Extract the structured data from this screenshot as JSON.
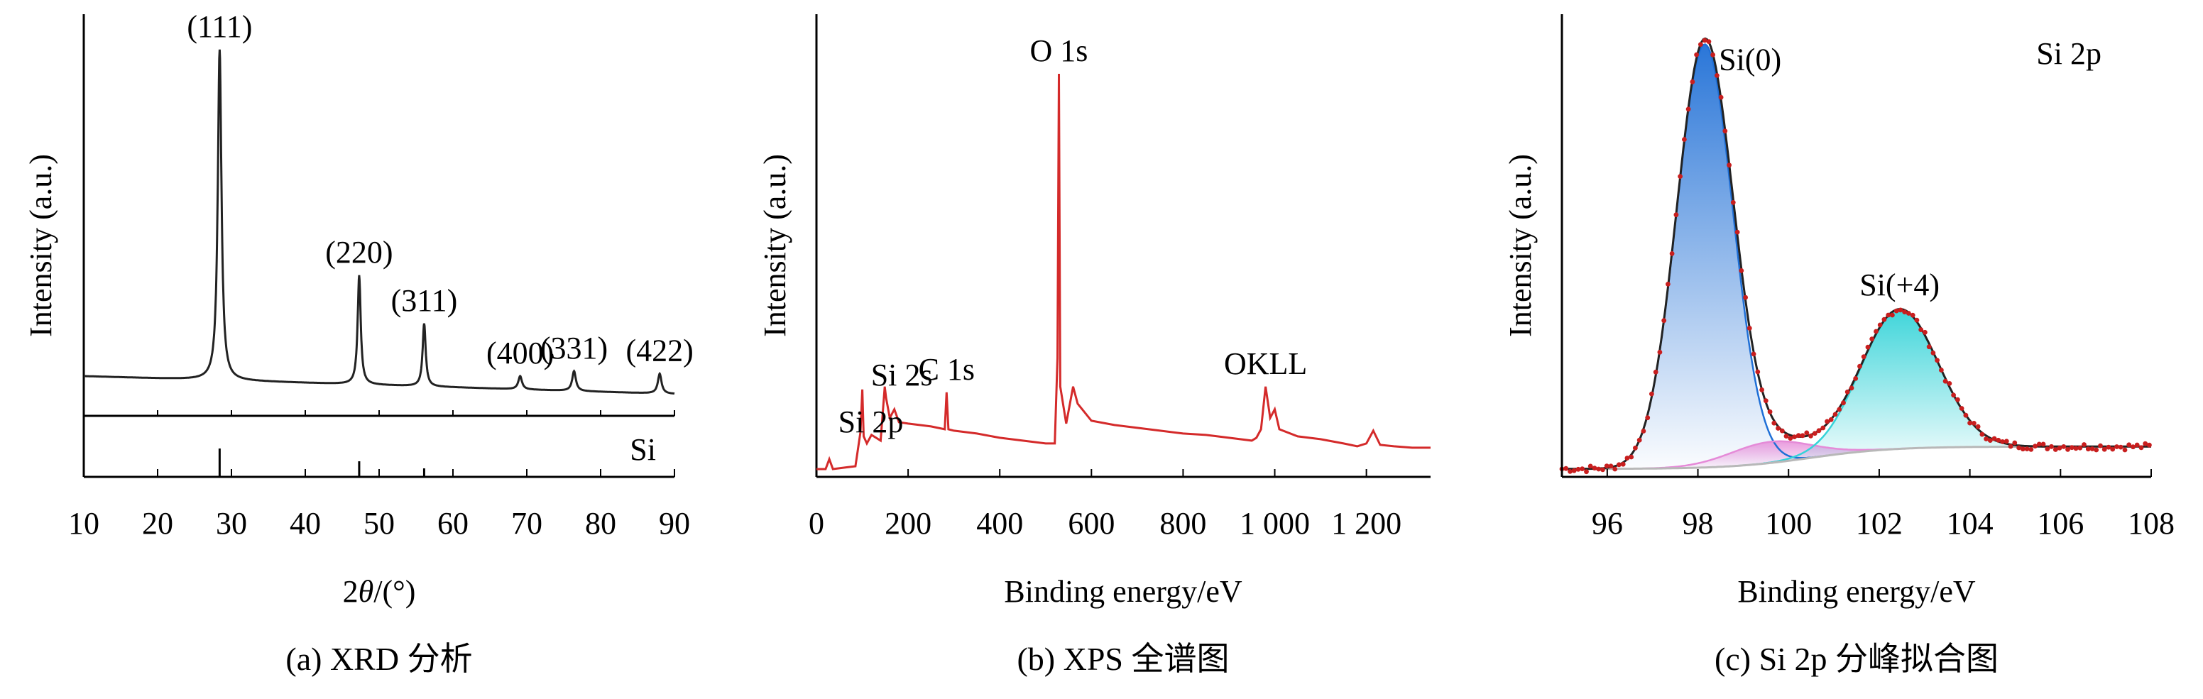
{
  "chart_data": [
    {
      "type": "line",
      "caption": "(a) XRD 分析",
      "xlabel_prefix": "2",
      "xlabel_symbol": "θ",
      "xlabel_suffix": "/(°)",
      "ylabel": "Intensity (a.u.)",
      "xlim": [
        10,
        90
      ],
      "xticks": [
        "10",
        "20",
        "30",
        "40",
        "50",
        "60",
        "70",
        "80",
        "90"
      ],
      "line_color": "#222222",
      "baseline": 12,
      "peaks": [
        {
          "x": 28.4,
          "height": 100,
          "width": 0.6,
          "label": "(111)"
        },
        {
          "x": 47.3,
          "height": 33,
          "width": 0.5,
          "label": "(220)"
        },
        {
          "x": 56.1,
          "height": 19,
          "width": 0.5,
          "label": "(311)"
        },
        {
          "x": 69.1,
          "height": 4,
          "width": 0.6,
          "label": "(400)"
        },
        {
          "x": 76.4,
          "height": 6,
          "width": 0.6,
          "label": "(331)"
        },
        {
          "x": 88.0,
          "height": 6,
          "width": 0.6,
          "label": "(422)"
        }
      ],
      "reference": {
        "label": "Si",
        "lines": [
          {
            "x": 28.4,
            "relative": 1.0
          },
          {
            "x": 47.3,
            "relative": 0.55
          },
          {
            "x": 56.1,
            "relative": 0.3
          }
        ]
      }
    },
    {
      "type": "line",
      "caption": "(b) XPS 全谱图",
      "xlabel": "Binding energy/eV",
      "ylabel": "Intensity (a.u.)",
      "xlim": [
        0,
        1340
      ],
      "xticks": [
        {
          "value": 0,
          "label": "0"
        },
        {
          "value": 200,
          "label": "200"
        },
        {
          "value": 400,
          "label": "400"
        },
        {
          "value": 600,
          "label": "600"
        },
        {
          "value": 800,
          "label": "800"
        },
        {
          "value": 1000,
          "label": "1 000"
        },
        {
          "value": 1200,
          "label": "1 200"
        }
      ],
      "line_color": "#d42a2a",
      "series": [
        {
          "x": [
            0,
            20,
            28,
            36,
            60,
            85,
            96,
            100,
            103,
            110,
            120,
            140,
            149,
            152,
            160,
            170,
            180,
            200,
            250,
            280,
            284,
            288,
            300,
            350,
            400,
            450,
            500,
            520,
            526,
            529,
            532,
            545,
            560,
            570,
            600,
            650,
            700,
            750,
            800,
            850,
            900,
            950,
            960,
            970,
            975,
            980,
            990,
            1000,
            1010,
            1050,
            1100,
            1150,
            1180,
            1200,
            1215,
            1230,
            1260,
            1300,
            1340
          ],
          "y": [
            2,
            2,
            9,
            2,
            3,
            4,
            28,
            58,
            25,
            20,
            26,
            22,
            60,
            52,
            38,
            44,
            35,
            34,
            32,
            30,
            56,
            30,
            29,
            27,
            24,
            22,
            20,
            20,
            80,
            280,
            60,
            34,
            60,
            48,
            36,
            33,
            31,
            29,
            27,
            26,
            24,
            22,
            24,
            30,
            45,
            60,
            38,
            44,
            30,
            25,
            23,
            20,
            18,
            20,
            29,
            19,
            18,
            17,
            17
          ]
        }
      ],
      "annotations": [
        {
          "x": 103,
          "label": "Si 2p"
        },
        {
          "x": 152,
          "label": "Si 2s"
        },
        {
          "x": 284,
          "label": "C 1s"
        },
        {
          "x": 529,
          "label": "O 1s"
        },
        {
          "x": 980,
          "label": "OKLL"
        }
      ]
    },
    {
      "type": "line",
      "caption": "(c) Si 2p 分峰拟合图",
      "xlabel": "Binding energy/eV",
      "ylabel": "Intensity (a.u.)",
      "title_in_plot": "Si 2p",
      "xlim": [
        95,
        108
      ],
      "xticks": [
        "96",
        "98",
        "100",
        "102",
        "104",
        "106",
        "108"
      ],
      "background_start": 1.2,
      "background_end": 6.5,
      "components": [
        {
          "name": "Si(0)",
          "center": 98.15,
          "sigma": 0.62,
          "amplitude": 100,
          "color": "#1f6fd6"
        },
        {
          "name": "",
          "center": 99.6,
          "sigma": 0.9,
          "amplitude": 5,
          "color": "#e58ad8"
        },
        {
          "name": "Si(+4)",
          "center": 102.45,
          "sigma": 0.85,
          "amplitude": 33,
          "color": "#35d3d8"
        }
      ],
      "envelope_color": "#222222",
      "data_color": "#c81e1e"
    }
  ]
}
